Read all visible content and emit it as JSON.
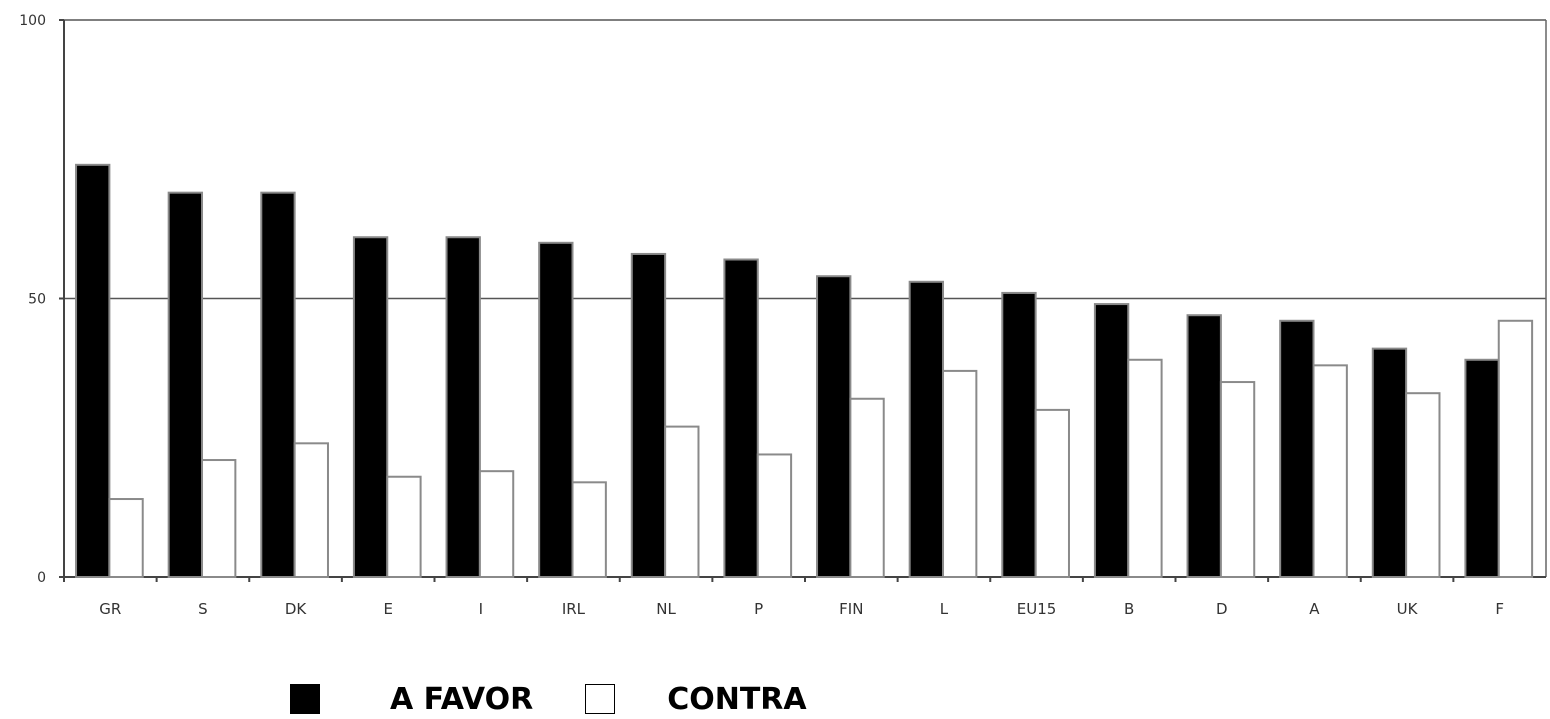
{
  "chart_data": {
    "type": "bar",
    "categories": [
      "GR",
      "S",
      "DK",
      "E",
      "I",
      "IRL",
      "NL",
      "P",
      "FIN",
      "L",
      "EU15",
      "B",
      "D",
      "A",
      "UK",
      "F"
    ],
    "series": [
      {
        "name": "A FAVOR",
        "color": "#000000",
        "values": [
          74,
          69,
          69,
          61,
          61,
          60,
          58,
          57,
          54,
          53,
          51,
          49,
          47,
          46,
          41,
          39
        ]
      },
      {
        "name": "CONTRA",
        "color": "#ffffff",
        "values": [
          14,
          21,
          24,
          18,
          19,
          17,
          27,
          22,
          32,
          37,
          30,
          39,
          35,
          38,
          33,
          46
        ]
      }
    ],
    "yticks": [
      "0",
      "50",
      "100"
    ],
    "ylim": [
      0,
      100
    ],
    "grid": true,
    "legend_position": "bottom"
  }
}
